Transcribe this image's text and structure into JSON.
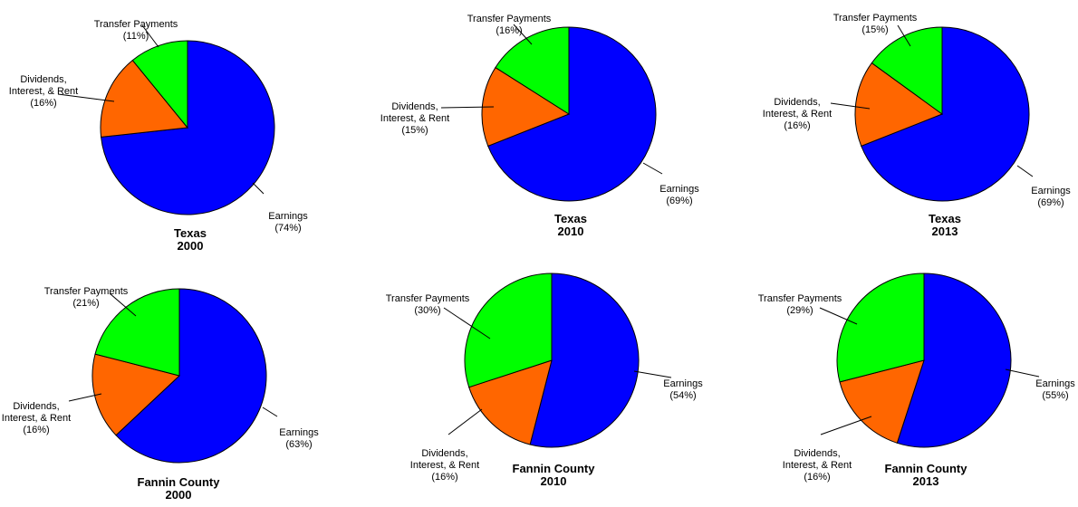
{
  "colors": {
    "earnings": "#0000FF",
    "dividends": "#FF6600",
    "transfer": "#00FF00",
    "outline": "#000000"
  },
  "chart_data": [
    {
      "type": "pie",
      "title": "Texas",
      "subtitle": "2000",
      "slices": [
        {
          "label": "Earnings",
          "pct_label": "(74%)",
          "value": 74,
          "color": "#0000FF"
        },
        {
          "label": "Dividends, Interest, & Rent",
          "label_lines": [
            "Dividends,",
            "Interest, & Rent"
          ],
          "pct_label": "(16%)",
          "value": 16,
          "color": "#FF6600"
        },
        {
          "label": "Transfer Payments",
          "pct_label": "(11%)",
          "value": 11,
          "color": "#00FF00"
        }
      ]
    },
    {
      "type": "pie",
      "title": "Texas",
      "subtitle": "2010",
      "slices": [
        {
          "label": "Earnings",
          "pct_label": "(69%)",
          "value": 69,
          "color": "#0000FF"
        },
        {
          "label": "Dividends, Interest, & Rent",
          "label_lines": [
            "Dividends,",
            "Interest, & Rent"
          ],
          "pct_label": "(15%)",
          "value": 15,
          "color": "#FF6600"
        },
        {
          "label": "Transfer Payments",
          "pct_label": "(16%)",
          "value": 16,
          "color": "#00FF00"
        }
      ]
    },
    {
      "type": "pie",
      "title": "Texas",
      "subtitle": "2013",
      "slices": [
        {
          "label": "Earnings",
          "pct_label": "(69%)",
          "value": 69,
          "color": "#0000FF"
        },
        {
          "label": "Dividends, Interest, & Rent",
          "label_lines": [
            "Dividends,",
            "Interest, & Rent"
          ],
          "pct_label": "(16%)",
          "value": 16,
          "color": "#FF6600"
        },
        {
          "label": "Transfer Payments",
          "pct_label": "(15%)",
          "value": 15,
          "color": "#00FF00"
        }
      ]
    },
    {
      "type": "pie",
      "title": "Fannin County",
      "subtitle": "2000",
      "slices": [
        {
          "label": "Earnings",
          "pct_label": "(63%)",
          "value": 63,
          "color": "#0000FF"
        },
        {
          "label": "Dividends, Interest, & Rent",
          "label_lines": [
            "Dividends,",
            "Interest, & Rent"
          ],
          "pct_label": "(16%)",
          "value": 16,
          "color": "#FF6600"
        },
        {
          "label": "Transfer Payments",
          "pct_label": "(21%)",
          "value": 21,
          "color": "#00FF00"
        }
      ]
    },
    {
      "type": "pie",
      "title": "Fannin County",
      "subtitle": "2010",
      "slices": [
        {
          "label": "Earnings",
          "pct_label": "(54%)",
          "value": 54,
          "color": "#0000FF"
        },
        {
          "label": "Dividends, Interest, & Rent",
          "label_lines": [
            "Dividends,",
            "Interest, & Rent"
          ],
          "pct_label": "(16%)",
          "value": 16,
          "color": "#FF6600"
        },
        {
          "label": "Transfer Payments",
          "pct_label": "(30%)",
          "value": 30,
          "color": "#00FF00"
        }
      ]
    },
    {
      "type": "pie",
      "title": "Fannin County",
      "subtitle": "2013",
      "slices": [
        {
          "label": "Earnings",
          "pct_label": "(55%)",
          "value": 55,
          "color": "#0000FF"
        },
        {
          "label": "Dividends, Interest, & Rent",
          "label_lines": [
            "Dividends,",
            "Interest, & Rent"
          ],
          "pct_label": "(16%)",
          "value": 16,
          "color": "#FF6600"
        },
        {
          "label": "Transfer Payments",
          "pct_label": "(29%)",
          "value": 29,
          "color": "#00FF00"
        }
      ]
    }
  ]
}
